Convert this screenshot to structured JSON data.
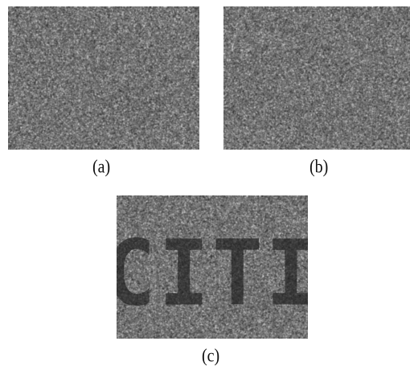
{
  "figure": {
    "panels": [
      {
        "id": "a",
        "caption": "(a)",
        "content": ""
      },
      {
        "id": "b",
        "caption": "(b)",
        "content": ""
      },
      {
        "id": "c",
        "caption": "(c)",
        "content": "CITI"
      }
    ],
    "colors": {
      "noise_base": "#6f6f6f",
      "revealed_text": "#1e1e1e"
    }
  }
}
